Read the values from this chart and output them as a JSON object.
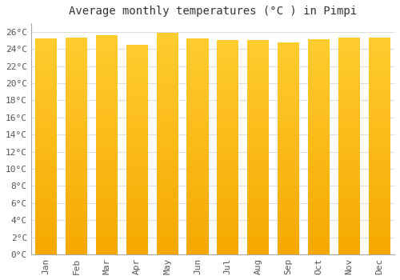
{
  "title": "Average monthly temperatures (°C ) in Pimpi",
  "months": [
    "Jan",
    "Feb",
    "Mar",
    "Apr",
    "May",
    "Jun",
    "Jul",
    "Aug",
    "Sep",
    "Oct",
    "Nov",
    "Dec"
  ],
  "values": [
    25.2,
    25.3,
    25.6,
    24.5,
    25.9,
    25.2,
    25.0,
    25.0,
    24.8,
    25.1,
    25.3,
    25.3
  ],
  "bar_color_bottom": "#F5A800",
  "bar_color_top": "#FFCC30",
  "background_color": "#FFFFFF",
  "plot_bg_color": "#FFFFFF",
  "grid_color": "#DDDDDD",
  "ylim": [
    0,
    27
  ],
  "yticks": [
    0,
    2,
    4,
    6,
    8,
    10,
    12,
    14,
    16,
    18,
    20,
    22,
    24,
    26
  ],
  "ytick_labels": [
    "0°C",
    "2°C",
    "4°C",
    "6°C",
    "8°C",
    "10°C",
    "12°C",
    "14°C",
    "16°C",
    "18°C",
    "20°C",
    "22°C",
    "24°C",
    "26°C"
  ],
  "title_fontsize": 10,
  "tick_fontsize": 8,
  "font_family": "monospace",
  "bar_width": 0.72
}
